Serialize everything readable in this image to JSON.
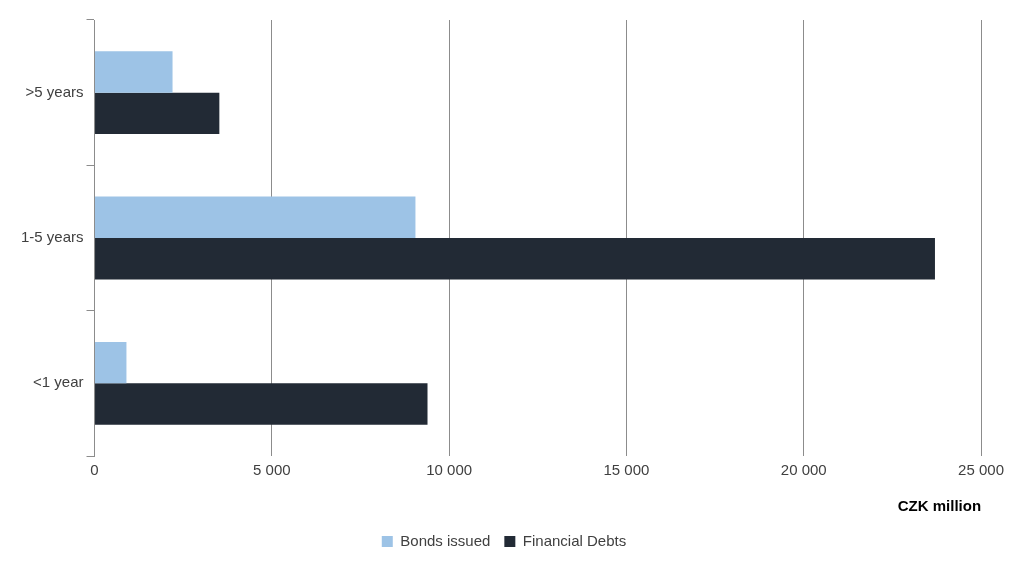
{
  "chart_data": {
    "type": "bar",
    "orientation": "horizontal",
    "xlabel": "CZK million",
    "categories": [
      ">5 years",
      "1-5 years",
      "<1 year"
    ],
    "series": [
      {
        "name": "Bonds issued",
        "color": "#9dc3e6",
        "values": [
          2200,
          9050,
          900
        ]
      },
      {
        "name": "Financial Debts",
        "color": "#222a35",
        "values": [
          3520,
          23700,
          9390
        ]
      }
    ],
    "xlim": [
      0,
      25000
    ],
    "xticks": [
      0,
      {
        "value": 5000,
        "label": "5 000"
      },
      {
        "value": 10000,
        "label": "10 000"
      },
      {
        "value": 15000,
        "label": "15 000"
      },
      {
        "value": 20000,
        "label": "20 000"
      },
      {
        "value": 25000,
        "label": "25 000"
      }
    ],
    "grid": "x",
    "legend": "bottom"
  }
}
